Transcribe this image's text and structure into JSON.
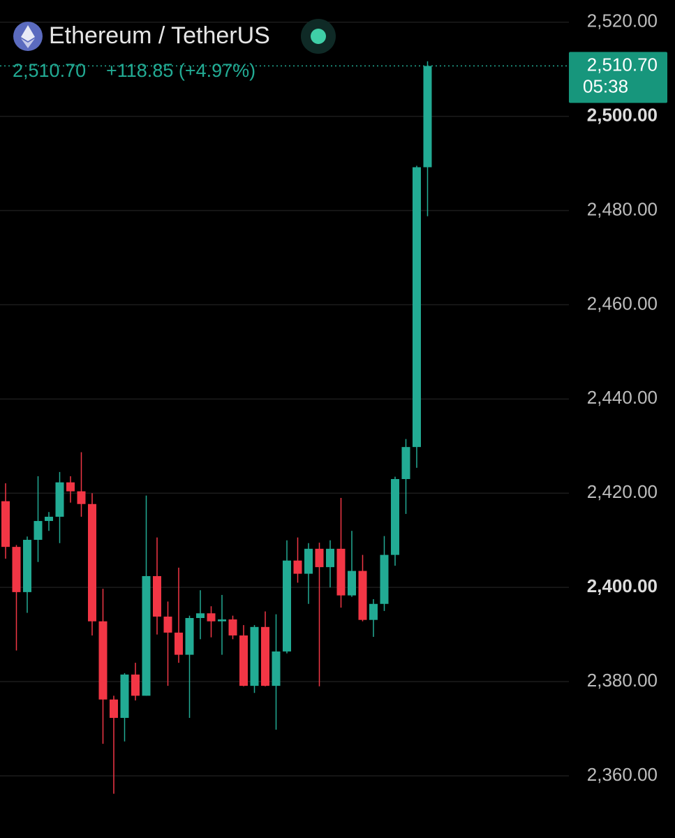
{
  "chart_data": {
    "type": "candlestick",
    "title": "Ethereum / TetherUS",
    "price_text": "2,510.70",
    "change_text": "+118.85 (+4.97%)",
    "last_price": 2510.7,
    "last_price_label": "2,510.70",
    "countdown": "05:38",
    "up_color": "#22ab94",
    "down_color": "#f23645",
    "grid": true,
    "ylim": [
      2346.8,
      2524.7
    ],
    "yticks": [
      {
        "value": 2360,
        "label": "2,360.00"
      },
      {
        "value": 2380,
        "label": "2,380.00"
      },
      {
        "value": 2400,
        "label": "2,400.00"
      },
      {
        "value": 2420,
        "label": "2,420.00"
      },
      {
        "value": 2440,
        "label": "2,440.00"
      },
      {
        "value": 2460,
        "label": "2,460.00"
      },
      {
        "value": 2480,
        "label": "2,480.00"
      },
      {
        "value": 2500,
        "label": "2,500.00"
      },
      {
        "value": 2520,
        "label": "2,520.00"
      }
    ],
    "open": [
      2418.3,
      2408.6,
      2399.0,
      2410.1,
      2414.1,
      2415.0,
      2422.3,
      2420.4,
      2417.7,
      2392.8,
      2376.2,
      2372.3,
      2381.5,
      2377.0,
      2402.4,
      2393.8,
      2390.4,
      2385.7,
      2393.5,
      2394.5,
      2392.8,
      2393.2,
      2389.8,
      2379.1,
      2391.6,
      2379.1,
      2386.4,
      2405.7,
      2402.9,
      2408.2,
      2404.3,
      2408.2,
      2398.3,
      2403.5,
      2393.1,
      2396.5,
      2406.9,
      2423.0,
      2429.8,
      2489.2
    ],
    "high": [
      2422.1,
      2409.0,
      2410.8,
      2423.6,
      2416.0,
      2424.5,
      2423.6,
      2428.7,
      2420.0,
      2399.7,
      2377.0,
      2381.8,
      2384.0,
      2419.5,
      2410.6,
      2397.0,
      2404.2,
      2394.0,
      2399.4,
      2396.0,
      2398.4,
      2394.0,
      2392.0,
      2392.0,
      2394.9,
      2394.3,
      2410.0,
      2410.6,
      2409.4,
      2409.5,
      2410.0,
      2419.0,
      2412.0,
      2406.9,
      2397.5,
      2410.9,
      2423.5,
      2431.5,
      2489.5,
      2511.7
    ],
    "low": [
      2406.1,
      2386.6,
      2394.6,
      2405.4,
      2412.0,
      2409.4,
      2418.0,
      2415.0,
      2389.8,
      2366.8,
      2356.2,
      2367.3,
      2376.0,
      2377.0,
      2390.0,
      2379.1,
      2384.0,
      2372.3,
      2389.0,
      2389.4,
      2385.7,
      2389.0,
      2379.0,
      2377.6,
      2379.0,
      2369.8,
      2386.0,
      2401.0,
      2396.5,
      2379.0,
      2400.0,
      2395.7,
      2398.0,
      2392.8,
      2389.5,
      2395.0,
      2404.6,
      2415.6,
      2425.4,
      2478.8
    ],
    "close": [
      2408.6,
      2399.0,
      2410.1,
      2414.1,
      2415.0,
      2422.3,
      2420.4,
      2417.7,
      2392.8,
      2376.2,
      2372.3,
      2381.5,
      2377.0,
      2402.4,
      2393.8,
      2390.4,
      2385.7,
      2393.5,
      2394.5,
      2392.8,
      2393.2,
      2389.8,
      2379.1,
      2391.6,
      2379.1,
      2386.4,
      2405.7,
      2402.9,
      2408.2,
      2404.3,
      2408.2,
      2398.3,
      2403.5,
      2393.1,
      2396.5,
      2406.9,
      2423.0,
      2429.8,
      2489.2,
      2510.7
    ]
  }
}
